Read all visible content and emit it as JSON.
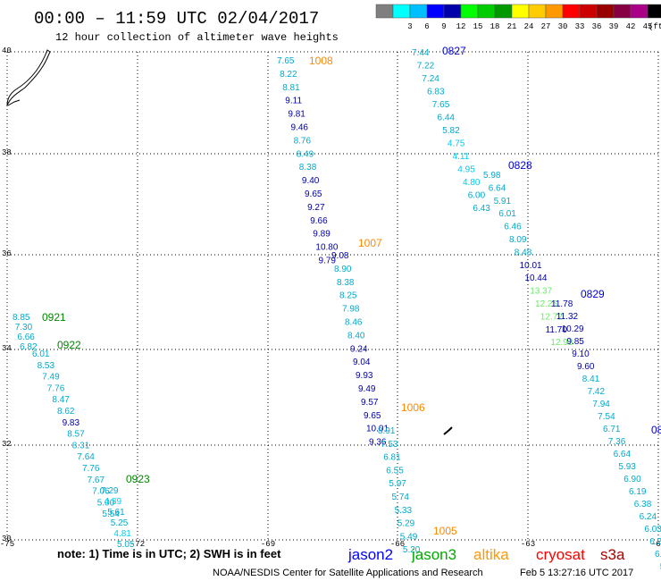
{
  "header": {
    "title": "00:00 – 11:59 UTC 02/04/2017",
    "subtitle": "12 hour collection of altimeter wave heights"
  },
  "color_scale": {
    "unit": "(ft)",
    "bins": [
      {
        "label": "",
        "color": "#7f7f7f"
      },
      {
        "label": "3",
        "color": "#00ffff"
      },
      {
        "label": "6",
        "color": "#00bfff"
      },
      {
        "label": "9",
        "color": "#0000ff"
      },
      {
        "label": "12",
        "color": "#0000aa"
      },
      {
        "label": "15",
        "color": "#00ff00"
      },
      {
        "label": "18",
        "color": "#00cc00"
      },
      {
        "label": "21",
        "color": "#009900"
      },
      {
        "label": "24",
        "color": "#ffff00"
      },
      {
        "label": "27",
        "color": "#ffcc00"
      },
      {
        "label": "30",
        "color": "#ff9900"
      },
      {
        "label": "33",
        "color": "#ff0000"
      },
      {
        "label": "36",
        "color": "#cc0000"
      },
      {
        "label": "39",
        "color": "#990000"
      },
      {
        "label": "42",
        "color": "#880044"
      },
      {
        "label": "45",
        "color": "#aa0088"
      },
      {
        "label": "70",
        "color": "#000000"
      }
    ]
  },
  "map": {
    "lon_range": [
      -75,
      -60
    ],
    "lat_range": [
      30,
      40
    ],
    "lon_ticks": [
      "-75",
      "-72",
      "-69",
      "-66",
      "-63",
      "-60"
    ],
    "lat_ticks": [
      "40",
      "38",
      "36",
      "34",
      "32",
      "30"
    ]
  },
  "passes": [
    {
      "time": "1008",
      "time_color": "#ff8800",
      "values": [
        {
          "v": "7.65",
          "c": "#00aacc"
        },
        {
          "v": "8.22",
          "c": "#00aacc"
        },
        {
          "v": "8.81",
          "c": "#00aacc"
        },
        {
          "v": "9.11",
          "c": "#0000aa"
        },
        {
          "v": "9.81",
          "c": "#0000aa"
        },
        {
          "v": "9.46",
          "c": "#0000aa"
        },
        {
          "v": "8.76",
          "c": "#00aacc"
        },
        {
          "v": "8.49",
          "c": "#00aacc"
        },
        {
          "v": "8.38",
          "c": "#00aacc"
        },
        {
          "v": "9.40",
          "c": "#0000aa"
        },
        {
          "v": "9.65",
          "c": "#0000aa"
        },
        {
          "v": "9.27",
          "c": "#0000aa"
        },
        {
          "v": "9.66",
          "c": "#0000aa"
        },
        {
          "v": "9.89",
          "c": "#0000aa"
        },
        {
          "v": "10.80",
          "c": "#0000aa"
        },
        {
          "v": "9.79",
          "c": "#0000aa"
        }
      ]
    },
    {
      "time": "1007",
      "time_color": "#ff8800",
      "values": [
        {
          "v": "9.08",
          "c": "#0000aa"
        },
        {
          "v": "8.90",
          "c": "#00aacc"
        },
        {
          "v": "8.38",
          "c": "#00aacc"
        },
        {
          "v": "8.25",
          "c": "#00aacc"
        },
        {
          "v": "7.98",
          "c": "#00aacc"
        },
        {
          "v": "8.46",
          "c": "#00aacc"
        },
        {
          "v": "8.40",
          "c": "#00aacc"
        },
        {
          "v": "9.24",
          "c": "#0000aa"
        },
        {
          "v": "9.04",
          "c": "#0000aa"
        },
        {
          "v": "9.93",
          "c": "#0000aa"
        },
        {
          "v": "9.49",
          "c": "#0000aa"
        },
        {
          "v": "9.57",
          "c": "#0000aa"
        },
        {
          "v": "9.65",
          "c": "#0000aa"
        },
        {
          "v": "10.01",
          "c": "#0000aa"
        },
        {
          "v": "9.36",
          "c": "#0000aa"
        }
      ]
    },
    {
      "time": "1006",
      "time_color": "#ff8800",
      "values": [
        {
          "v": "8.91",
          "c": "#00aacc"
        },
        {
          "v": "7.53",
          "c": "#00aacc"
        },
        {
          "v": "6.81",
          "c": "#00aacc"
        },
        {
          "v": "6.55",
          "c": "#00aacc"
        },
        {
          "v": "5.97",
          "c": "#00aacc"
        },
        {
          "v": "5.74",
          "c": "#00aacc"
        },
        {
          "v": "5.33",
          "c": "#00aacc"
        },
        {
          "v": "5.29",
          "c": "#00aacc"
        },
        {
          "v": "5.49",
          "c": "#00aacc"
        },
        {
          "v": "5.20",
          "c": "#00aacc"
        }
      ]
    },
    {
      "time": "1005",
      "time_color": "#ff8800",
      "values": []
    },
    {
      "time": "0827",
      "time_color": "#0000dd",
      "values": [
        {
          "v": "7.44",
          "c": "#00aacc"
        },
        {
          "v": "7.22",
          "c": "#00aacc"
        },
        {
          "v": "7.24",
          "c": "#00aacc"
        },
        {
          "v": "6.83",
          "c": "#00aacc"
        },
        {
          "v": "7.65",
          "c": "#00aacc"
        },
        {
          "v": "6.44",
          "c": "#00aacc"
        },
        {
          "v": "5.82",
          "c": "#00aacc"
        },
        {
          "v": "4.75",
          "c": "#00ccee"
        },
        {
          "v": "4.11",
          "c": "#00ccee"
        },
        {
          "v": "4.95",
          "c": "#00ccee"
        },
        {
          "v": "4.80",
          "c": "#00ccee"
        },
        {
          "v": "6.00",
          "c": "#00aacc"
        },
        {
          "v": "6.43",
          "c": "#00aacc"
        }
      ]
    },
    {
      "time": "0828",
      "time_color": "#0000dd",
      "values": [
        {
          "v": "5.98",
          "c": "#00aacc"
        },
        {
          "v": "6.64",
          "c": "#00aacc"
        },
        {
          "v": "5.91",
          "c": "#00aacc"
        },
        {
          "v": "6.01",
          "c": "#00aacc"
        },
        {
          "v": "6.46",
          "c": "#00aacc"
        },
        {
          "v": "8.09",
          "c": "#00aacc"
        },
        {
          "v": "8.48",
          "c": "#00aacc"
        },
        {
          "v": "10.01",
          "c": "#0000aa"
        },
        {
          "v": "10.44",
          "c": "#0000aa"
        },
        {
          "v": "13.37",
          "c": "#66ee66"
        },
        {
          "v": "12.25",
          "c": "#66ee66"
        },
        {
          "v": "12.72",
          "c": "#66ee66"
        },
        {
          "v": "11.70",
          "c": "#0000aa"
        },
        {
          "v": "12.93",
          "c": "#66ee66"
        }
      ]
    },
    {
      "time": "0829",
      "time_color": "#0000dd",
      "values": [
        {
          "v": "11.78",
          "c": "#0000aa"
        },
        {
          "v": "11.32",
          "c": "#0000aa"
        },
        {
          "v": "10.29",
          "c": "#0000aa"
        },
        {
          "v": "9.85",
          "c": "#0000aa"
        },
        {
          "v": "9.10",
          "c": "#0000aa"
        },
        {
          "v": "9.60",
          "c": "#0000aa"
        },
        {
          "v": "8.41",
          "c": "#00aacc"
        },
        {
          "v": "7.42",
          "c": "#00aacc"
        },
        {
          "v": "7.94",
          "c": "#00aacc"
        },
        {
          "v": "7.54",
          "c": "#00aacc"
        },
        {
          "v": "6.71",
          "c": "#00aacc"
        },
        {
          "v": "7.36",
          "c": "#00aacc"
        },
        {
          "v": "6.64",
          "c": "#00aacc"
        },
        {
          "v": "5.93",
          "c": "#00aacc"
        },
        {
          "v": "6.90",
          "c": "#00aacc"
        },
        {
          "v": "6.19",
          "c": "#00aacc"
        },
        {
          "v": "6.38",
          "c": "#00aacc"
        },
        {
          "v": "6.24",
          "c": "#00aacc"
        },
        {
          "v": "6.03",
          "c": "#00aacc"
        },
        {
          "v": "6.29",
          "c": "#00aacc"
        },
        {
          "v": "6.5",
          "c": "#00aacc"
        },
        {
          "v": "5.",
          "c": "#00aacc"
        },
        {
          "v": "6.",
          "c": "#00aacc"
        }
      ]
    },
    {
      "time": "08",
      "time_color": "#0000dd",
      "values": []
    },
    {
      "time": "0921",
      "time_color": "#008800",
      "values": [
        {
          "v": "8.85",
          "c": "#00aacc"
        },
        {
          "v": "7.30",
          "c": "#00aacc"
        },
        {
          "v": "6.66",
          "c": "#00aacc"
        },
        {
          "v": "6.82",
          "c": "#00aacc"
        }
      ]
    },
    {
      "time": "0922",
      "time_color": "#008800",
      "values": [
        {
          "v": "6.01",
          "c": "#00aacc"
        },
        {
          "v": "8.53",
          "c": "#00aacc"
        },
        {
          "v": "7.49",
          "c": "#00aacc"
        },
        {
          "v": "7.76",
          "c": "#00aacc"
        },
        {
          "v": "8.47",
          "c": "#00aacc"
        },
        {
          "v": "8.62",
          "c": "#00aacc"
        },
        {
          "v": "9.83",
          "c": "#0000aa"
        },
        {
          "v": "8.57",
          "c": "#00aacc"
        },
        {
          "v": "8.31",
          "c": "#00aacc"
        },
        {
          "v": "7.64",
          "c": "#00aacc"
        },
        {
          "v": "7.76",
          "c": "#00aacc"
        },
        {
          "v": "7.67",
          "c": "#00aacc"
        },
        {
          "v": "7.06",
          "c": "#00aacc"
        },
        {
          "v": "5.00",
          "c": "#00aacc"
        },
        {
          "v": "5.54",
          "c": "#00aacc"
        }
      ]
    },
    {
      "time": "0923",
      "time_color": "#008800",
      "values": [
        {
          "v": "7.29",
          "c": "#00aacc"
        },
        {
          "v": "4.89",
          "c": "#00ccee"
        },
        {
          "v": "5.61",
          "c": "#00aacc"
        },
        {
          "v": "5.25",
          "c": "#00aacc"
        },
        {
          "v": "4.81",
          "c": "#00ccee"
        },
        {
          "v": "5.05",
          "c": "#00aacc"
        }
      ]
    }
  ],
  "footer": {
    "note": "note: 1) Time is in UTC; 2) SWH is in feet",
    "satellites": [
      {
        "name": "jason2",
        "color": "#0000ff"
      },
      {
        "name": "jason3",
        "color": "#00aa00"
      },
      {
        "name": "altika",
        "color": "#ff9900"
      },
      {
        "name": "cryosat",
        "color": "#ff0000"
      },
      {
        "name": "s3a",
        "color": "#aa0000"
      }
    ],
    "credit": "NOAA/NESDIS Center for Satellite Applications and Research",
    "timestamp": "Feb  5 13:27:16 UTC 2017"
  }
}
